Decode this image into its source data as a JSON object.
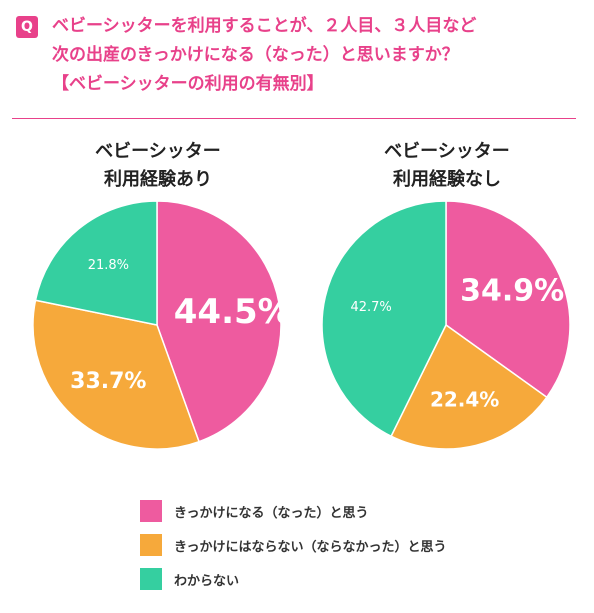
{
  "header": {
    "badge": "Q",
    "lines": [
      "ベビーシッターを利用することが、２人目、３人目など",
      "次の出産のきっかけになる（なった）と思いますか？",
      "【ベビーシッターの利用の有無別】"
    ]
  },
  "colors": {
    "accent": "#e8418a",
    "yes": "#ee5b9f",
    "no": "#f6a93b",
    "unknown": "#35cfa0"
  },
  "chart_data": [
    {
      "type": "pie",
      "title_lines": [
        "ベビーシッター",
        "利用経験あり"
      ],
      "labels": [
        "きっかけになる（なった）と思う",
        "きっかけにはならない（ならなかった）と思う",
        "わからない"
      ],
      "values": [
        44.5,
        33.7,
        21.8
      ],
      "value_labels": [
        "44.5%",
        "33.7%",
        "21.8%"
      ]
    },
    {
      "type": "pie",
      "title_lines": [
        "ベビーシッター",
        "利用経験なし"
      ],
      "labels": [
        "きっかけになる（なった）と思う",
        "きっかけにはならない（ならなかった）と思う",
        "わからない"
      ],
      "values": [
        34.9,
        22.4,
        42.7
      ],
      "value_labels": [
        "34.9%",
        "22.4%",
        "42.7%"
      ]
    }
  ],
  "legend": [
    {
      "label": "きっかけになる（なった）と思う",
      "color": "#ee5b9f"
    },
    {
      "label": "きっかけにはならない（ならなかった）と思う",
      "color": "#f6a93b"
    },
    {
      "label": "わからない",
      "color": "#35cfa0"
    }
  ]
}
